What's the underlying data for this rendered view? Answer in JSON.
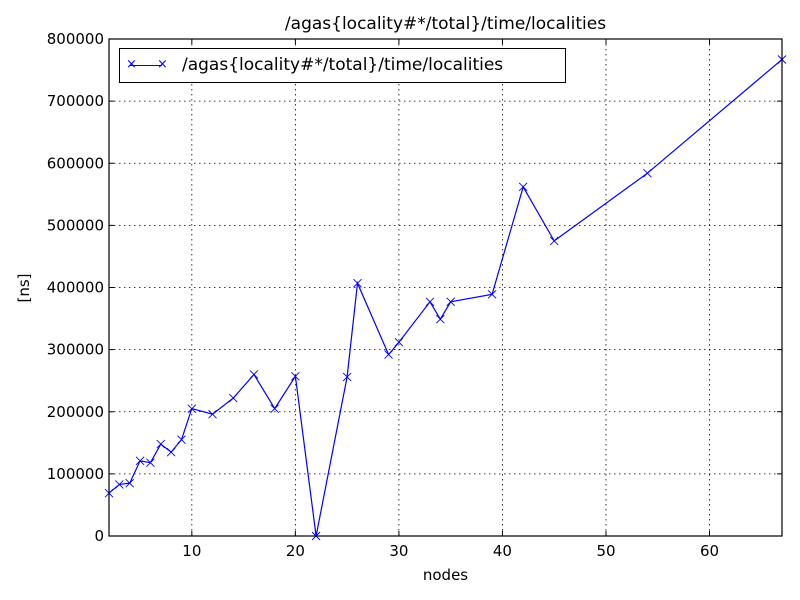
{
  "chart_data": {
    "type": "line",
    "title": "/agas{locality#*/total}/time/localities",
    "xlabel": "nodes",
    "ylabel": "[ns]",
    "xlim": [
      2,
      67
    ],
    "ylim": [
      0,
      800000
    ],
    "xticks": [
      10,
      20,
      30,
      40,
      50,
      60
    ],
    "yticks": [
      0,
      100000,
      200000,
      300000,
      400000,
      500000,
      600000,
      700000,
      800000
    ],
    "grid": true,
    "legend_position": "upper left",
    "series": [
      {
        "name": "/agas{locality#*/total}/time/localities",
        "color": "#0000ff",
        "marker": "x",
        "x": [
          2,
          3,
          4,
          5,
          6,
          7,
          8,
          9,
          10,
          12,
          14,
          16,
          18,
          20,
          22,
          25,
          26,
          29,
          30,
          33,
          34,
          35,
          39,
          42,
          45,
          54,
          67
        ],
        "values": [
          69000,
          83000,
          85000,
          121000,
          118000,
          148000,
          135000,
          155000,
          205000,
          196000,
          222000,
          260000,
          205000,
          257000,
          0,
          256000,
          407000,
          292000,
          312000,
          377000,
          349000,
          377000,
          389000,
          562000,
          475000,
          584000,
          767000
        ]
      }
    ]
  },
  "legend": {
    "label": "/agas{locality#*/total}/time/localities"
  }
}
